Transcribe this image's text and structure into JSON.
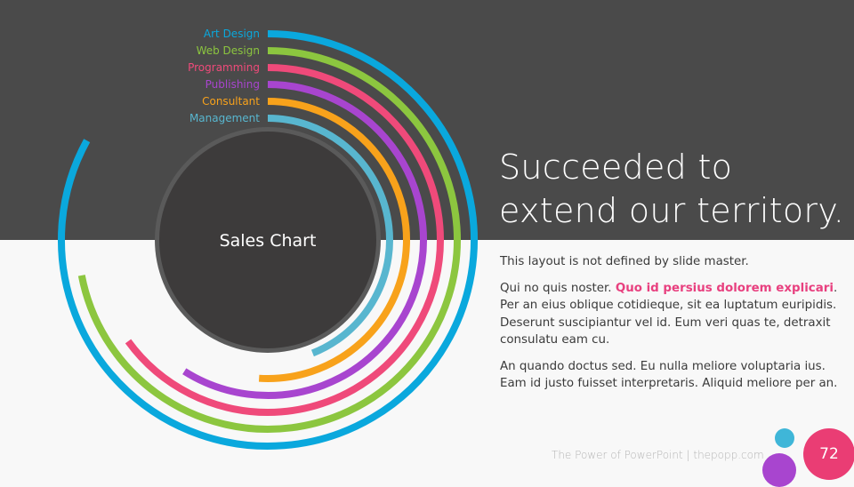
{
  "chart_data": {
    "type": "radial-bar",
    "center_label": "Sales Chart",
    "series": [
      {
        "name": "Art Design",
        "color": "#0aa8dd"
      },
      {
        "name": "Web Design",
        "color": "#8cc63f"
      },
      {
        "name": "Programming",
        "color": "#ef4a7a"
      },
      {
        "name": "Publishing",
        "color": "#a845cf"
      },
      {
        "name": "Consultant",
        "color": "#f8a21b"
      },
      {
        "name": "Management",
        "color": "#58b6cf"
      }
    ],
    "values": [
      0.83,
      0.72,
      0.65,
      0.59,
      0.51,
      0.44
    ]
  },
  "headline": "Succeeded to extend our territory.",
  "body": {
    "p1": "This layout is not defined by slide master.",
    "p2_pre": "Qui no quis noster. ",
    "p2_highlight": "Quo id persius dolorem explicari",
    "p2_post": ". Per an eius oblique cotidieque, sit ea luptatum euripidis. Deserunt suscipiantur vel id. Eum veri quas te, detraxit consulatu eam cu.",
    "p3": "An quando doctus sed. Eu nulla meliore voluptaria ius. Eam id justo fuisset interpretaris. Aliquid meliore per an."
  },
  "footer": "The Power of PowerPoint | thepopp.com",
  "page_number": "72"
}
